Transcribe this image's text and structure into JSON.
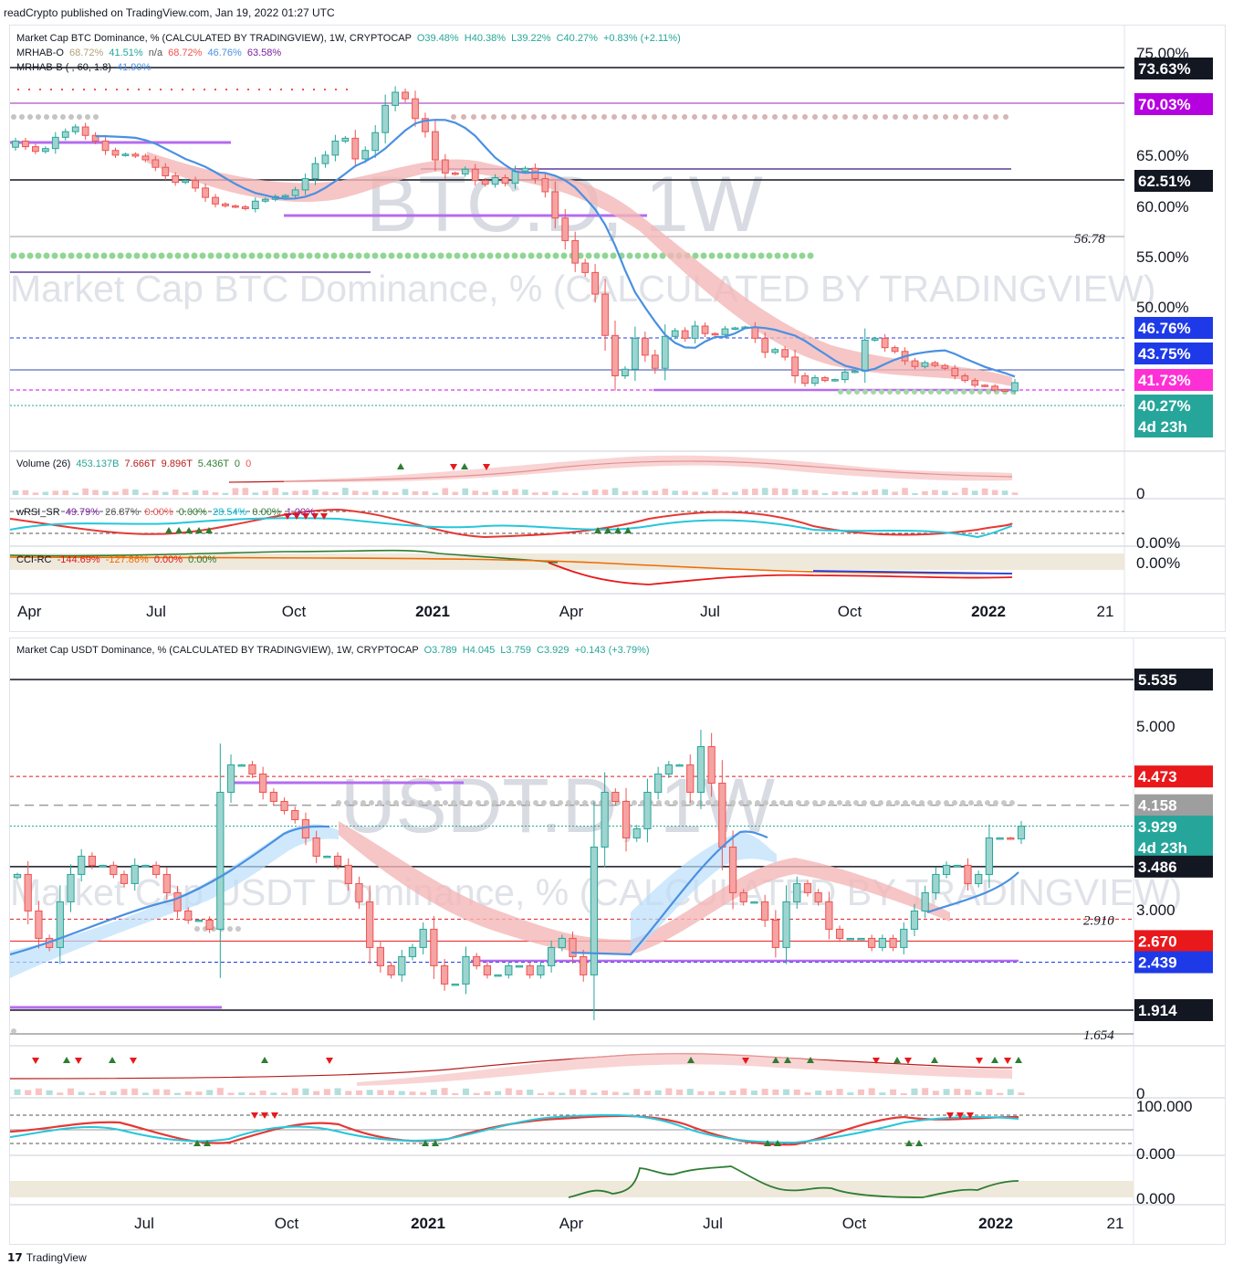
{
  "caption": "readCrypto published on TradingView.com, Jan 19, 2022 01:27 UTC",
  "footer": {
    "logo": "17",
    "brand": "TradingView"
  },
  "colors": {
    "up": "#26a69a",
    "down": "#ef5350",
    "upFill": "#9ed4cf",
    "downFill": "#f5a3a3",
    "ma": "#4a90e2",
    "band": "#f4b6b6"
  },
  "panels": [
    {
      "title_line": "Market Cap BTC Dominance, % (CALCULATED BY TRADINGVIEW), 1W, CRYPTOCAP",
      "ohlc": {
        "o": "O39.48%",
        "h": "H40.38%",
        "l": "L39.22%",
        "c": "C40.27%",
        "chg": "+0.83% (+2.11%)"
      },
      "ind1": {
        "name": "MRHAB-O",
        "values": [
          "68.72%",
          "41.51%",
          "n/a",
          "68.72%",
          "46.76%",
          "63.58%"
        ]
      },
      "ind2": {
        "name": "MRHAB-B",
        "params": "( , 60, 1.8)",
        "value": "41.90%"
      },
      "watermark_symbol": "BTC.D, 1W",
      "watermark_desc": "Market Cap BTC Dominance, % (CALCULATED BY TRADINGVIEW)",
      "axis_labels": [
        "75.00%",
        "65.00%",
        "60.00%",
        "55.00%",
        "50.00%"
      ],
      "price_badges": [
        {
          "text": "73.63%",
          "bg": "#131722"
        },
        {
          "text": "70.03%",
          "bg": "#b500e0"
        },
        {
          "text": "62.51%",
          "bg": "#131722"
        },
        {
          "text": "46.76%",
          "bg": "#1e3ae8"
        },
        {
          "text": "43.75%",
          "bg": "#1e3ae8"
        },
        {
          "text": "41.73%",
          "bg": "#ff2fd6"
        },
        {
          "text": "40.27%",
          "bg": "#26a69a"
        },
        {
          "text": "4d 23h",
          "bg": "#26a69a"
        }
      ],
      "level_label": "56.78",
      "volume_legend": {
        "name": "Volume (26)",
        "values": [
          "453.137B",
          "7.666T",
          "9.896T",
          "5.436T",
          "0",
          "0"
        ]
      },
      "volume_axis": "0",
      "rsi_legend": {
        "name": "wRSI_SR",
        "values": [
          "49.79%",
          "26.87%",
          "0.00%",
          "0.00%",
          "28.54%",
          "0.00%",
          "1.00%"
        ]
      },
      "rsi_axis": "0.00%",
      "cci_legend": {
        "name": "CCI-RC",
        "values": [
          "-144.69%",
          "-127.86%",
          "0.00%",
          "0.00%"
        ]
      },
      "cci_axis": "0.00%",
      "time_labels": [
        "Apr",
        "Jul",
        "Oct",
        "2021",
        "Apr",
        "Jul",
        "Oct",
        "2022",
        "21"
      ]
    },
    {
      "title_line": "Market Cap USDT Dominance, % (CALCULATED BY TRADINGVIEW), 1W, CRYPTOCAP",
      "ohlc": {
        "o": "O3.789",
        "h": "H4.045",
        "l": "L3.759",
        "c": "C3.929",
        "chg": "+0.143 (+3.79%)"
      },
      "watermark_symbol": "USDT.D, 1W",
      "watermark_desc": "Market Cap USDT Dominance, % (CALCULATED BY TRADINGVIEW)",
      "axis_labels": [
        "5.000",
        "3.000"
      ],
      "price_badges": [
        {
          "text": "5.535",
          "bg": "#131722"
        },
        {
          "text": "4.473",
          "bg": "#e8181b"
        },
        {
          "text": "4.158",
          "bg": "#9e9e9e"
        },
        {
          "text": "3.929",
          "bg": "#26a69a"
        },
        {
          "text": "4d 23h",
          "bg": "#26a69a"
        },
        {
          "text": "3.486",
          "bg": "#131722"
        },
        {
          "text": "2.670",
          "bg": "#e8181b"
        },
        {
          "text": "2.439",
          "bg": "#1e3ae8"
        },
        {
          "text": "1.914",
          "bg": "#131722"
        }
      ],
      "level_labels": [
        "2.910",
        "1.654"
      ],
      "volume_axis": "0",
      "rsi_axis_top": "100.000",
      "rsi_axis_bottom": "0.000",
      "cci_axis": "0.000",
      "time_labels": [
        "Jul",
        "Oct",
        "2021",
        "Apr",
        "Jul",
        "Oct",
        "2022",
        "21"
      ]
    }
  ],
  "chart_data": [
    {
      "type": "candlestick",
      "title": "Market Cap BTC Dominance, % (CALCULATED BY TRADINGVIEW), 1W, CRYPTOCAP",
      "y_unit": "%",
      "ylim": [
        38,
        76
      ],
      "x_range": [
        "2020-04",
        "2022-02"
      ],
      "closes": [
        66.0,
        65.4,
        64.9,
        65.2,
        66.4,
        67.0,
        67.5,
        66.6,
        66.0,
        65.0,
        64.5,
        64.6,
        64.4,
        64.0,
        63.2,
        62.3,
        61.6,
        61.8,
        61.0,
        60.0,
        59.3,
        59.1,
        59.0,
        58.8,
        59.6,
        59.8,
        60.1,
        60.2,
        60.8,
        62.0,
        63.6,
        64.5,
        66.0,
        66.3,
        64.1,
        65.0,
        66.9,
        69.8,
        71.2,
        70.5,
        68.4,
        67.0,
        64.0,
        62.6,
        62.5,
        63.0,
        61.8,
        61.4,
        62.1,
        61.5,
        62.8,
        63.1,
        62.0,
        60.6,
        57.8,
        55.4,
        53.0,
        52.0,
        49.7,
        45.3,
        41.0,
        41.7,
        45.0,
        43.2,
        41.8,
        45.2,
        45.8,
        45.0,
        46.3,
        45.5,
        45.4,
        46.0,
        46.1,
        46.2,
        45.0,
        43.5,
        43.8,
        43.0,
        41.0,
        40.2,
        40.8,
        40.5,
        40.6,
        41.4,
        41.5,
        44.8,
        45.0,
        44.0,
        43.6,
        42.6,
        42.0,
        42.4,
        42.1,
        41.8,
        41.0,
        40.5,
        40.0,
        39.9,
        39.5,
        39.4,
        40.27
      ],
      "levels": [
        73.63,
        70.03,
        62.51,
        56.78,
        46.76,
        43.75,
        41.73,
        40.27
      ]
    },
    {
      "type": "candlestick",
      "title": "Market Cap USDT Dominance, % (CALCULATED BY TRADINGVIEW), 1W, CRYPTOCAP",
      "ylim": [
        1.6,
        5.8
      ],
      "x_range": [
        "2020-05",
        "2022-02"
      ],
      "closes": [
        3.4,
        3.0,
        2.7,
        2.6,
        3.1,
        3.4,
        3.6,
        3.5,
        3.5,
        3.4,
        3.3,
        3.5,
        3.5,
        3.4,
        3.2,
        3.0,
        2.9,
        2.9,
        2.8,
        4.3,
        4.6,
        4.6,
        4.5,
        4.3,
        4.2,
        4.1,
        4.0,
        3.8,
        3.6,
        3.6,
        3.5,
        3.3,
        3.1,
        2.6,
        2.4,
        2.3,
        2.5,
        2.6,
        2.8,
        2.4,
        2.2,
        2.2,
        2.5,
        2.4,
        2.3,
        2.3,
        2.4,
        2.4,
        2.3,
        2.4,
        2.6,
        2.7,
        2.5,
        2.3,
        3.7,
        4.3,
        4.2,
        3.8,
        3.9,
        4.3,
        4.5,
        4.6,
        4.6,
        4.3,
        4.8,
        4.4,
        3.7,
        3.2,
        3.1,
        3.1,
        2.9,
        2.6,
        3.1,
        3.3,
        3.2,
        3.1,
        2.8,
        2.7,
        2.7,
        2.7,
        2.6,
        2.7,
        2.6,
        2.8,
        3.0,
        3.2,
        3.4,
        3.5,
        3.5,
        3.3,
        3.4,
        3.8,
        3.8,
        3.79,
        3.929
      ],
      "levels": [
        5.535,
        4.473,
        4.158,
        3.929,
        3.486,
        2.91,
        2.67,
        2.439,
        1.914,
        1.654
      ]
    }
  ]
}
